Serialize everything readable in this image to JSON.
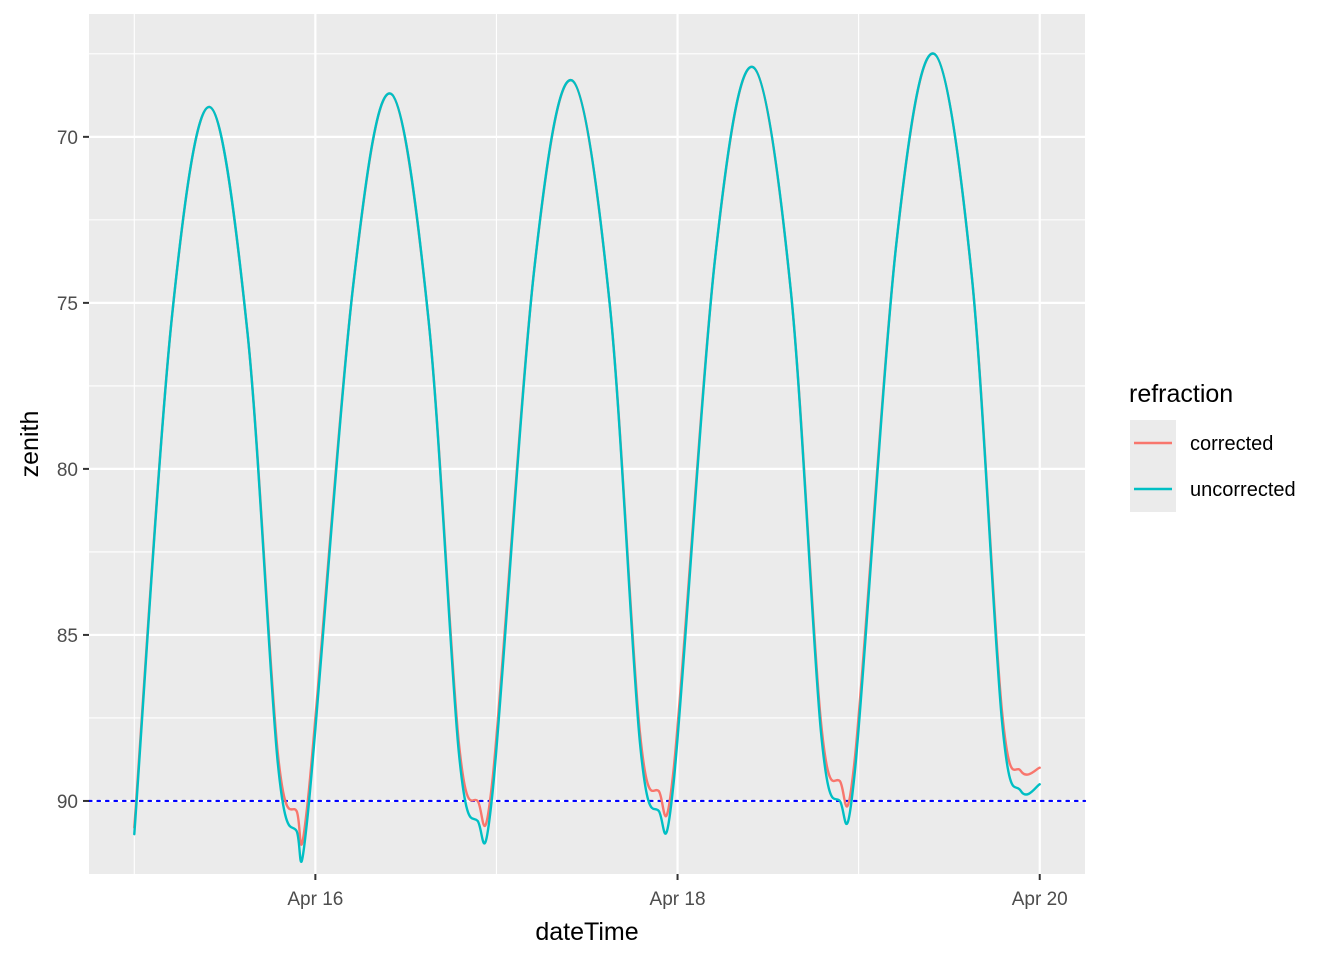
{
  "chart_data": {
    "type": "line",
    "xlabel": "dateTime",
    "ylabel": "zenith",
    "y_reversed": true,
    "ylim": [
      92.2,
      66.3
    ],
    "xlim": [
      "2020-04-14 18:00",
      "2020-04-20 06:00"
    ],
    "x_ticks": [
      {
        "label": "Apr 16",
        "value": "2020-04-16 00:00"
      },
      {
        "label": "Apr 18",
        "value": "2020-04-18 00:00"
      },
      {
        "label": "Apr 20",
        "value": "2020-04-20 00:00"
      }
    ],
    "x_minor_ticks": [
      "2020-04-15 00:00",
      "2020-04-17 00:00",
      "2020-04-19 00:00"
    ],
    "y_ticks": [
      70,
      75,
      80,
      85,
      90
    ],
    "y_minor_ticks": [
      67.5,
      72.5,
      77.5,
      82.5,
      87.5
    ],
    "grid": true,
    "legend": {
      "title": "refraction",
      "position": "right",
      "entries": [
        "corrected",
        "uncorrected"
      ]
    },
    "reference_line": {
      "y": 90,
      "style": "dotted",
      "color": "#0000ff"
    },
    "series": [
      {
        "name": "corrected",
        "color": "#f8766d",
        "points": [
          [
            "2020-04-15 00:00",
            90.8
          ],
          [
            "2020-04-15 05:00",
            75.4
          ],
          [
            "2020-04-15 10:00",
            69.1
          ],
          [
            "2020-04-15 15:00",
            75.9
          ],
          [
            "2020-04-15 19:00",
            88.5
          ],
          [
            "2020-04-15 21:30",
            90.3
          ],
          [
            "2020-04-15 23:00",
            90.0
          ],
          [
            "2020-04-16 05:00",
            74.5
          ],
          [
            "2020-04-16 10:00",
            68.7
          ],
          [
            "2020-04-16 15:00",
            75.5
          ],
          [
            "2020-04-16 19:00",
            88.2
          ],
          [
            "2020-04-16 21:30",
            90.0
          ],
          [
            "2020-04-16 23:30",
            89.3
          ],
          [
            "2020-04-17 05:00",
            74.0
          ],
          [
            "2020-04-17 10:00",
            68.3
          ],
          [
            "2020-04-17 15:00",
            75.0
          ],
          [
            "2020-04-17 19:00",
            87.9
          ],
          [
            "2020-04-17 21:30",
            89.7
          ],
          [
            "2020-04-17 23:30",
            89.0
          ],
          [
            "2020-04-18 05:00",
            73.6
          ],
          [
            "2020-04-18 10:00",
            67.9
          ],
          [
            "2020-04-18 15:00",
            74.6
          ],
          [
            "2020-04-18 19:00",
            87.6
          ],
          [
            "2020-04-18 21:30",
            89.4
          ],
          [
            "2020-04-18 23:30",
            88.7
          ],
          [
            "2020-04-19 05:00",
            73.2
          ],
          [
            "2020-04-19 10:00",
            67.5
          ],
          [
            "2020-04-19 15:00",
            74.2
          ],
          [
            "2020-04-19 19:00",
            87.3
          ],
          [
            "2020-04-19 21:30",
            89.1
          ],
          [
            "2020-04-20 00:00",
            89.0
          ]
        ]
      },
      {
        "name": "uncorrected",
        "color": "#00bfc4",
        "points": [
          [
            "2020-04-15 00:00",
            91.0
          ],
          [
            "2020-04-15 05:00",
            75.4
          ],
          [
            "2020-04-15 10:00",
            69.1
          ],
          [
            "2020-04-15 15:00",
            75.9
          ],
          [
            "2020-04-15 19:00",
            88.8
          ],
          [
            "2020-04-15 21:30",
            90.9
          ],
          [
            "2020-04-15 23:00",
            90.4
          ],
          [
            "2020-04-16 05:00",
            74.5
          ],
          [
            "2020-04-16 10:00",
            68.7
          ],
          [
            "2020-04-16 15:00",
            75.5
          ],
          [
            "2020-04-16 19:00",
            88.5
          ],
          [
            "2020-04-16 21:30",
            90.6
          ],
          [
            "2020-04-16 23:30",
            89.7
          ],
          [
            "2020-04-17 05:00",
            74.0
          ],
          [
            "2020-04-17 10:00",
            68.3
          ],
          [
            "2020-04-17 15:00",
            75.0
          ],
          [
            "2020-04-17 19:00",
            88.2
          ],
          [
            "2020-04-17 21:30",
            90.3
          ],
          [
            "2020-04-17 23:30",
            89.4
          ],
          [
            "2020-04-18 05:00",
            73.6
          ],
          [
            "2020-04-18 10:00",
            67.9
          ],
          [
            "2020-04-18 15:00",
            74.6
          ],
          [
            "2020-04-18 19:00",
            87.9
          ],
          [
            "2020-04-18 21:30",
            90.0
          ],
          [
            "2020-04-18 23:30",
            89.1
          ],
          [
            "2020-04-19 05:00",
            73.2
          ],
          [
            "2020-04-19 10:00",
            67.5
          ],
          [
            "2020-04-19 15:00",
            74.2
          ],
          [
            "2020-04-19 19:00",
            87.6
          ],
          [
            "2020-04-19 21:30",
            89.7
          ],
          [
            "2020-04-20 00:00",
            89.5
          ]
        ]
      }
    ]
  }
}
